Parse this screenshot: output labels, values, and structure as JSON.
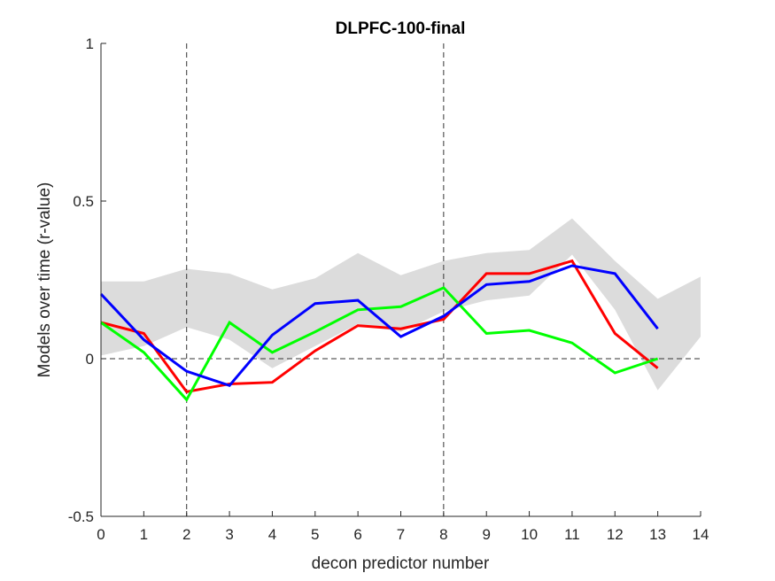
{
  "chart_data": {
    "type": "line",
    "title": "DLPFC-100-final",
    "xlabel": "decon predictor number",
    "ylabel": "Models over time (r-value)",
    "xlim": [
      0,
      14
    ],
    "ylim": [
      -0.5,
      1
    ],
    "xticks": [
      0,
      1,
      2,
      3,
      4,
      5,
      6,
      7,
      8,
      9,
      10,
      11,
      12,
      13,
      14
    ],
    "yticks": [
      -0.5,
      0,
      0.5,
      1
    ],
    "ytick_labels": [
      "-0.5",
      "0",
      "0.5",
      "1"
    ],
    "grid": false,
    "reference_lines": {
      "horizontal_y": [
        0
      ],
      "vertical_x": [
        2,
        8
      ],
      "style": "dashed"
    },
    "band": {
      "color": "#dcdcdc",
      "x": [
        0,
        1,
        2,
        3,
        4,
        5,
        6,
        7,
        8,
        9,
        10,
        11,
        12,
        13,
        14
      ],
      "upper": [
        0.245,
        0.245,
        0.285,
        0.27,
        0.22,
        0.255,
        0.335,
        0.265,
        0.31,
        0.335,
        0.345,
        0.445,
        0.31,
        0.19,
        0.26
      ],
      "lower": [
        0.01,
        0.04,
        0.1,
        0.06,
        -0.03,
        0.04,
        0.11,
        0.085,
        0.15,
        0.185,
        0.2,
        0.33,
        0.155,
        -0.1,
        0.07
      ]
    },
    "x": [
      0,
      1,
      2,
      3,
      4,
      5,
      6,
      7,
      8,
      9,
      10,
      11,
      12,
      13
    ],
    "series": [
      {
        "color": "#ff0000",
        "values": [
          0.115,
          0.08,
          -0.105,
          -0.08,
          -0.075,
          0.025,
          0.105,
          0.095,
          0.125,
          0.27,
          0.27,
          0.31,
          0.08,
          -0.03
        ]
      },
      {
        "color": "#00ff00",
        "values": [
          0.115,
          0.02,
          -0.13,
          0.115,
          0.02,
          0.085,
          0.155,
          0.165,
          0.225,
          0.08,
          0.09,
          0.05,
          -0.045,
          0.0
        ]
      },
      {
        "color": "#0000ff",
        "values": [
          0.205,
          0.06,
          -0.04,
          -0.085,
          0.075,
          0.175,
          0.185,
          0.07,
          0.135,
          0.235,
          0.245,
          0.295,
          0.27,
          0.095
        ]
      }
    ]
  }
}
